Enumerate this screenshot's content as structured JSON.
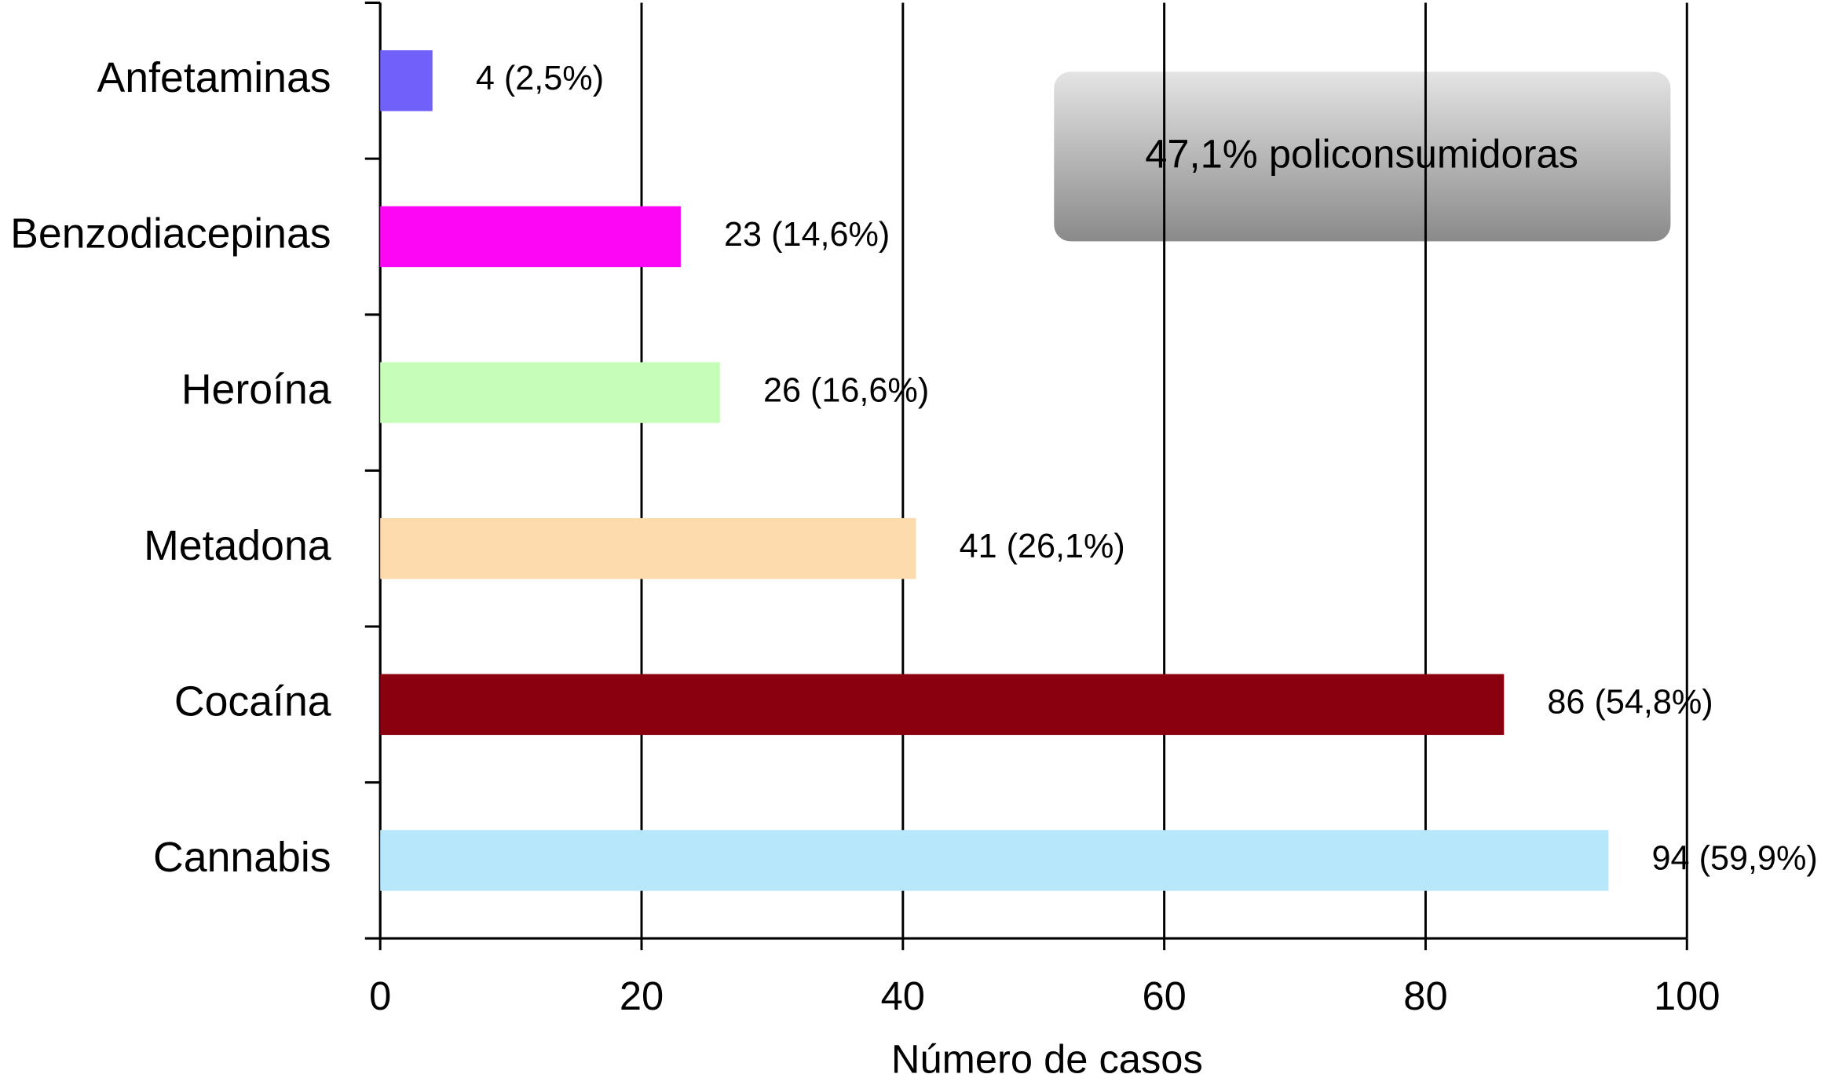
{
  "chart_data": {
    "type": "hbar",
    "categories": [
      "Anfetaminas",
      "Benzodiacepinas",
      "Heroína",
      "Metadona",
      "Cocaína",
      "Cannabis"
    ],
    "values": [
      4,
      23,
      26,
      41,
      86,
      94
    ],
    "value_labels": [
      "4 (2,5%)",
      "23 (14,6%)",
      "26 (16,6%)",
      "41 (26,1%)",
      "86 (54,8%)",
      "94 (59,9%)"
    ],
    "colors": [
      "#7161fb",
      "#fc07f6",
      "#c5fdb9",
      "#fddbad",
      "#8b000e",
      "#b6e7fb"
    ],
    "xlabel": "Número de casos",
    "annotation": "47,1% policonsumidoras",
    "xlim": [
      0,
      100
    ],
    "xticks": [
      0,
      20,
      40,
      60,
      80,
      100
    ],
    "grid": true
  }
}
